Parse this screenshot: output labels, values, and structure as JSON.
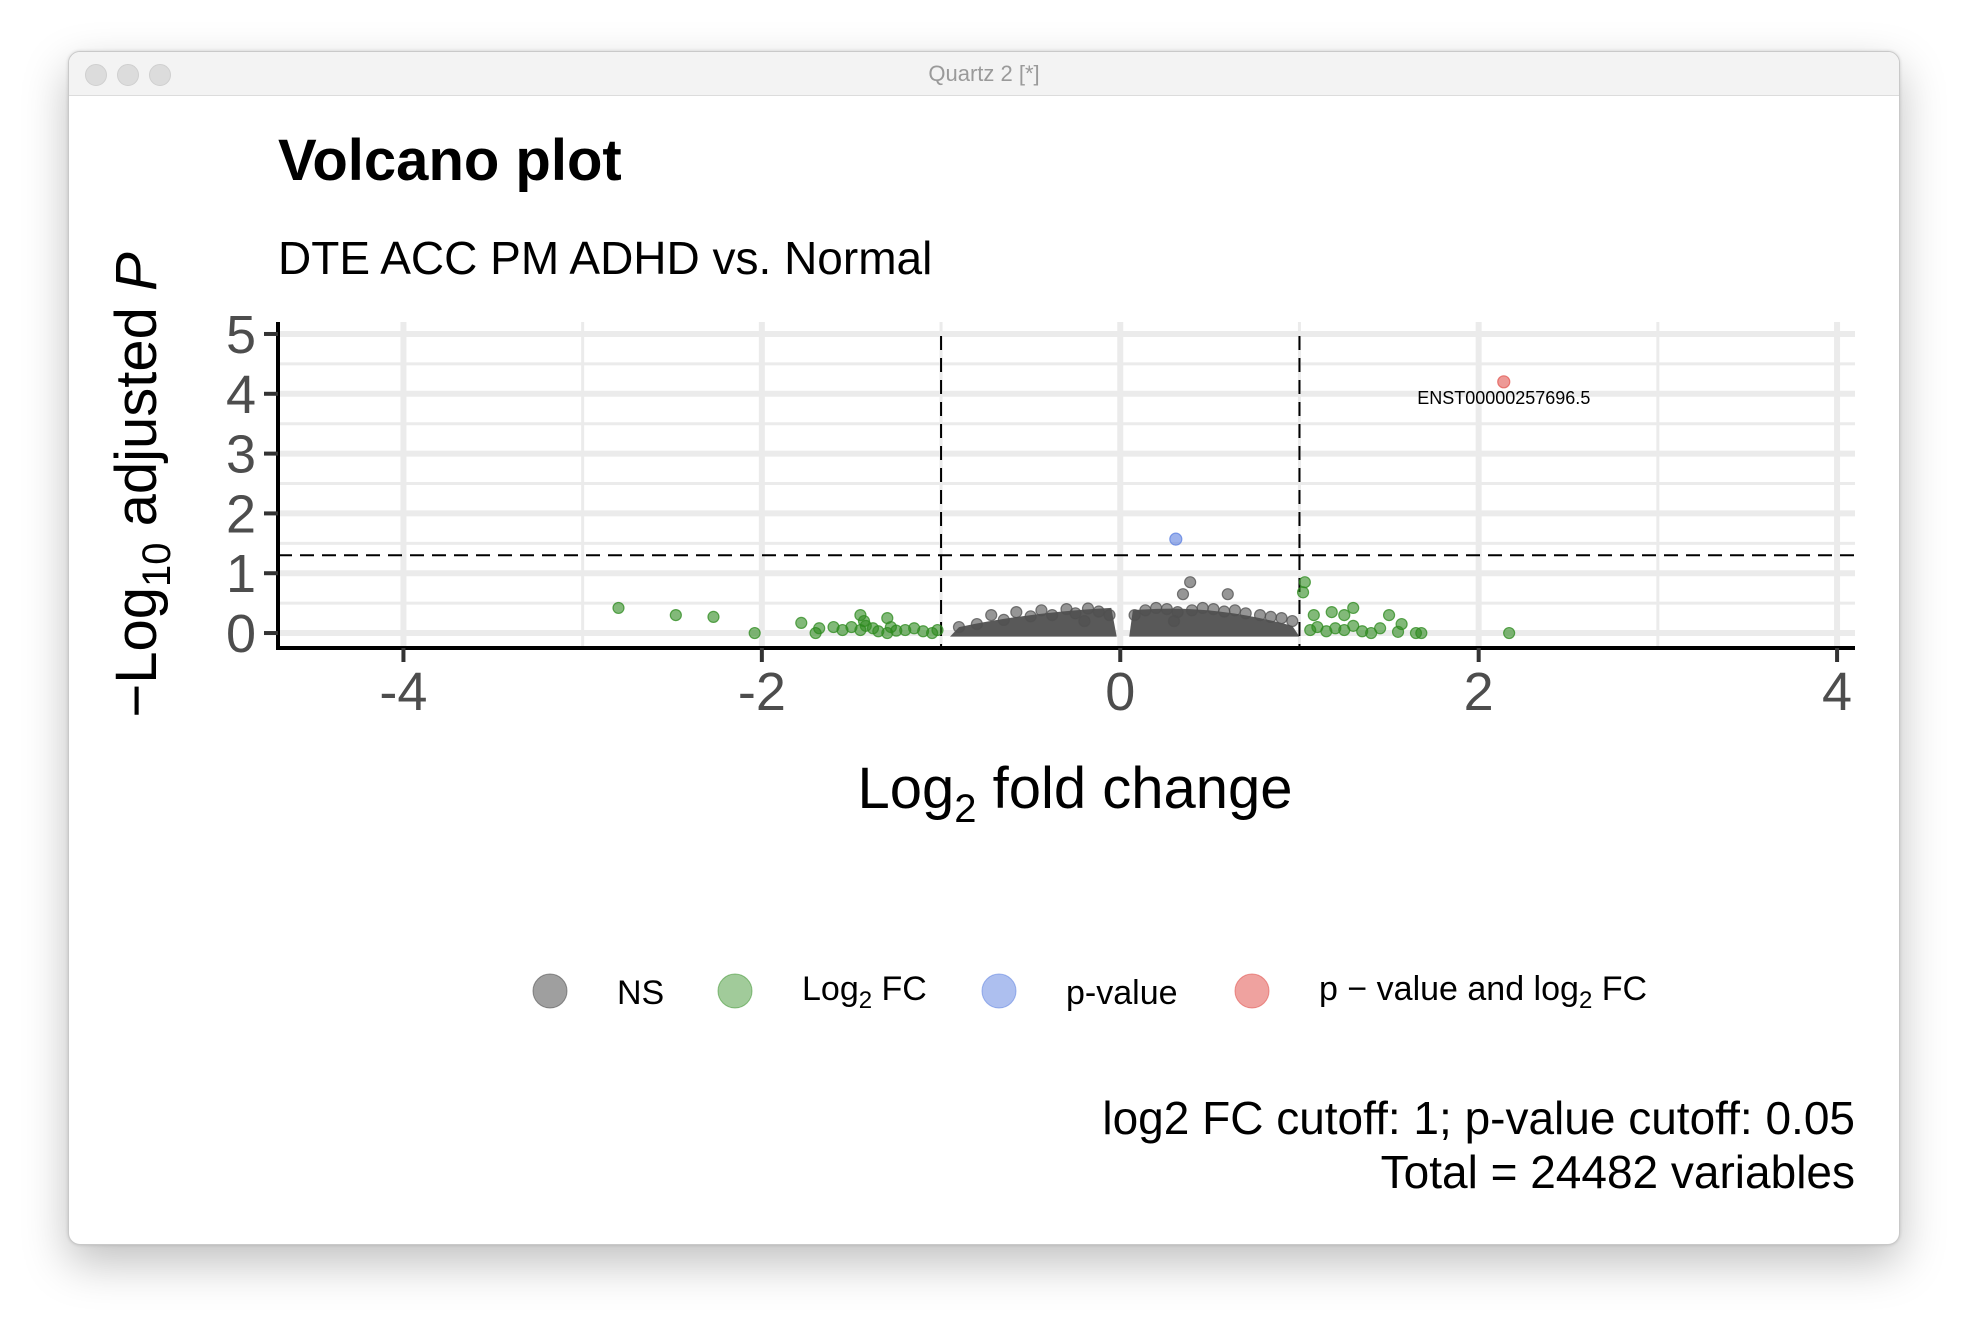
{
  "window": {
    "title": "Quartz 2 [*]"
  },
  "colors": {
    "ns": "#505050",
    "log2fc": "#2e8b1f",
    "pvalue": "#5b7fe0",
    "both": "#e15550",
    "grid": "#ebebeb"
  },
  "chart_data": {
    "type": "scatter",
    "title": "Volcano plot",
    "subtitle": "DTE ACC PM ADHD vs. Normal",
    "xlabel_main": "Log",
    "xlabel_sub": "2",
    "xlabel_rest": " fold change",
    "ylabel_pre": "−Log",
    "ylabel_sub": "10",
    "ylabel_mid": " adjusted ",
    "ylabel_p": "P",
    "xlim": [
      -4.7,
      4.1
    ],
    "ylim": [
      -0.25,
      5.2
    ],
    "x_ticks": [
      -4,
      -2,
      0,
      2,
      4
    ],
    "x_tick_labels": [
      "-4",
      "-2",
      "0",
      "2",
      "4"
    ],
    "y_ticks": [
      0,
      1,
      2,
      3,
      4,
      5
    ],
    "y_tick_labels": [
      "0",
      "1",
      "2",
      "3",
      "4",
      "5"
    ],
    "fc_cutoff": 1,
    "p_cutoff_line": 1.301,
    "legend": {
      "ns": "NS",
      "log2fc_main": "Log",
      "log2fc_sub": "2",
      "log2fc_rest": " FC",
      "pvalue": "p-value",
      "both_main": "p − value and log",
      "both_sub": "2",
      "both_rest": " FC"
    },
    "caption_line1": "log2 FC cutoff: 1; p-value cutoff: 0.05",
    "caption_line2": "Total = 24482 variables",
    "series": [
      {
        "name": "NS",
        "color_key": "ns",
        "points": [
          [
            -0.72,
            0.3
          ],
          [
            -0.65,
            0.22
          ],
          [
            -0.58,
            0.35
          ],
          [
            -0.5,
            0.28
          ],
          [
            -0.44,
            0.38
          ],
          [
            -0.38,
            0.3
          ],
          [
            -0.3,
            0.4
          ],
          [
            -0.25,
            0.33
          ],
          [
            -0.18,
            0.41
          ],
          [
            -0.12,
            0.36
          ],
          [
            -0.06,
            0.3
          ],
          [
            -0.8,
            0.15
          ],
          [
            -0.9,
            0.1
          ],
          [
            0.08,
            0.3
          ],
          [
            0.14,
            0.38
          ],
          [
            0.2,
            0.42
          ],
          [
            0.26,
            0.4
          ],
          [
            0.32,
            0.35
          ],
          [
            0.4,
            0.38
          ],
          [
            0.46,
            0.42
          ],
          [
            0.52,
            0.4
          ],
          [
            0.58,
            0.36
          ],
          [
            0.64,
            0.38
          ],
          [
            0.7,
            0.33
          ],
          [
            0.78,
            0.3
          ],
          [
            0.84,
            0.27
          ],
          [
            0.9,
            0.25
          ],
          [
            0.96,
            0.2
          ],
          [
            0.35,
            0.65
          ],
          [
            0.39,
            0.85
          ],
          [
            0.6,
            0.65
          ],
          [
            -0.2,
            0.2
          ],
          [
            0.3,
            0.2
          ]
        ]
      },
      {
        "name": "Log2 FC",
        "color_key": "log2fc",
        "points": [
          [
            -2.8,
            0.42
          ],
          [
            -2.48,
            0.3
          ],
          [
            -2.27,
            0.27
          ],
          [
            -2.04,
            0.0
          ],
          [
            -1.78,
            0.17
          ],
          [
            -1.68,
            0.08
          ],
          [
            -1.6,
            0.1
          ],
          [
            -1.55,
            0.05
          ],
          [
            -1.5,
            0.1
          ],
          [
            -1.45,
            0.05
          ],
          [
            -1.42,
            0.12
          ],
          [
            -1.38,
            0.08
          ],
          [
            -1.35,
            0.03
          ],
          [
            -1.3,
            0.0
          ],
          [
            -1.28,
            0.1
          ],
          [
            -1.25,
            0.04
          ],
          [
            -1.2,
            0.05
          ],
          [
            -1.15,
            0.08
          ],
          [
            -1.1,
            0.03
          ],
          [
            -1.05,
            0.0
          ],
          [
            -1.02,
            0.05
          ],
          [
            -1.7,
            0.0
          ],
          [
            -1.45,
            0.3
          ],
          [
            -1.3,
            0.25
          ],
          [
            -1.43,
            0.2
          ],
          [
            1.02,
            0.68
          ],
          [
            1.03,
            0.85
          ],
          [
            1.06,
            0.05
          ],
          [
            1.1,
            0.1
          ],
          [
            1.15,
            0.03
          ],
          [
            1.2,
            0.08
          ],
          [
            1.25,
            0.05
          ],
          [
            1.3,
            0.12
          ],
          [
            1.35,
            0.03
          ],
          [
            1.4,
            0.0
          ],
          [
            1.45,
            0.08
          ],
          [
            1.55,
            0.02
          ],
          [
            1.65,
            0.0
          ],
          [
            1.68,
            0.0
          ],
          [
            1.5,
            0.3
          ],
          [
            1.57,
            0.15
          ],
          [
            1.3,
            0.42
          ],
          [
            1.25,
            0.3
          ],
          [
            1.18,
            0.35
          ],
          [
            1.08,
            0.3
          ],
          [
            2.17,
            0.0
          ]
        ]
      },
      {
        "name": "p-value",
        "color_key": "pvalue",
        "points": [
          [
            0.31,
            1.57
          ]
        ]
      },
      {
        "name": "p - value and log2 FC",
        "color_key": "both",
        "points": [
          [
            2.14,
            4.2
          ]
        ]
      }
    ],
    "annotations": [
      {
        "text": "ENST00000257696.5",
        "x": 2.14,
        "y": 3.93
      }
    ]
  }
}
